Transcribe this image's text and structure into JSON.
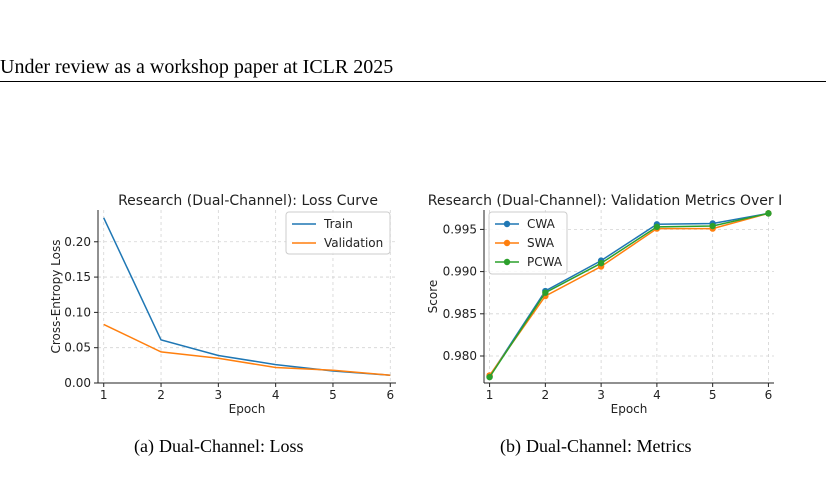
{
  "header": {
    "running_title": "Under review as a workshop paper at ICLR 2025"
  },
  "captions": [
    {
      "tag": "(a)",
      "text": "Dual-Channel: Loss"
    },
    {
      "tag": "(b)",
      "text": "Dual-Channel: Metrics"
    }
  ],
  "colors": {
    "blue": "#1f77b4",
    "orange": "#ff7f0e",
    "green": "#2ca02c"
  },
  "chart_data": [
    {
      "type": "line",
      "title": "Research (Dual-Channel): Loss Curve",
      "xlabel": "Epoch",
      "ylabel": "Cross-Entropy Loss",
      "x": [
        1,
        2,
        3,
        4,
        5,
        6
      ],
      "xticks": [
        1,
        2,
        3,
        4,
        5,
        6
      ],
      "yticks": [
        0.0,
        0.05,
        0.1,
        0.15,
        0.2
      ],
      "ytick_labels": [
        "0.00",
        "0.05",
        "0.10",
        "0.15",
        "0.20"
      ],
      "xlim": [
        0.9,
        6.1
      ],
      "ylim": [
        0.0,
        0.245
      ],
      "grid": true,
      "legend_position": "top-right",
      "series": [
        {
          "name": "Train",
          "color": "#1f77b4",
          "values": [
            0.234,
            0.061,
            0.039,
            0.026,
            0.017,
            0.011
          ]
        },
        {
          "name": "Validation",
          "color": "#ff7f0e",
          "values": [
            0.083,
            0.044,
            0.035,
            0.022,
            0.018,
            0.011
          ]
        }
      ]
    },
    {
      "type": "line",
      "title": "Research (Dual-Channel): Validation Metrics Over I",
      "xlabel": "Epoch",
      "ylabel": "Score",
      "x": [
        1,
        2,
        3,
        4,
        5,
        6
      ],
      "xticks": [
        1,
        2,
        3,
        4,
        5,
        6
      ],
      "yticks": [
        0.98,
        0.985,
        0.99,
        0.995
      ],
      "ytick_labels": [
        "0.980",
        "0.985",
        "0.990",
        "0.995"
      ],
      "xlim": [
        0.9,
        6.1
      ],
      "ylim": [
        0.9768,
        0.9973
      ],
      "grid": true,
      "legend_position": "top-left",
      "markers": true,
      "series": [
        {
          "name": "CWA",
          "color": "#1f77b4",
          "values": [
            0.9776,
            0.9877,
            0.9913,
            0.9956,
            0.9957,
            0.9969
          ]
        },
        {
          "name": "SWA",
          "color": "#ff7f0e",
          "values": [
            0.9777,
            0.9871,
            0.9906,
            0.9951,
            0.9951,
            0.9969
          ]
        },
        {
          "name": "PCWA",
          "color": "#2ca02c",
          "values": [
            0.9775,
            0.9875,
            0.991,
            0.9953,
            0.9954,
            0.9969
          ]
        }
      ]
    }
  ]
}
